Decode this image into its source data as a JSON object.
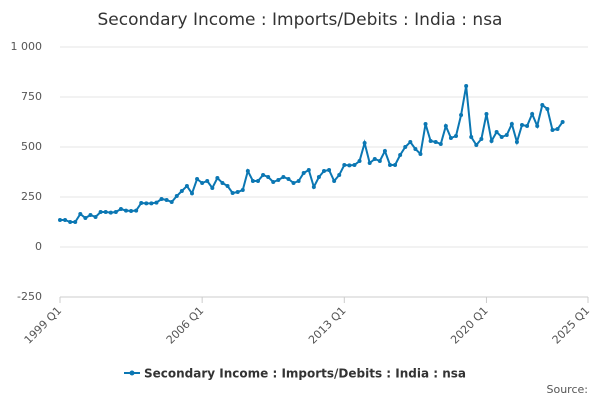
{
  "chart_data": {
    "type": "line",
    "title": "Secondary Income : Imports/Debits : India : nsa",
    "source": "Source:",
    "x": [
      1999,
      1999.25,
      1999.5,
      1999.75,
      2000,
      2000.25,
      2000.5,
      2000.75,
      2001,
      2001.25,
      2001.5,
      2001.75,
      2002,
      2002.25,
      2002.5,
      2002.75,
      2003,
      2003.25,
      2003.5,
      2003.75,
      2004,
      2004.25,
      2004.5,
      2004.75,
      2005,
      2005.25,
      2005.5,
      2005.75,
      2006,
      2006.25,
      2006.5,
      2006.75,
      2007,
      2007.25,
      2007.5,
      2007.75,
      2008,
      2008.25,
      2008.5,
      2008.75,
      2009,
      2009.25,
      2009.5,
      2009.75,
      2010,
      2010.25,
      2010.5,
      2010.75,
      2011,
      2011.25,
      2011.5,
      2011.75,
      2012,
      2012.25,
      2012.5,
      2012.75,
      2013,
      2013.25,
      2013.5,
      2013.75,
      2014,
      2014.25,
      2014.5,
      2014.75,
      2015,
      2015.25,
      2015.5,
      2015.75,
      2016,
      2016.25,
      2016.5,
      2016.75,
      2017,
      2017.25,
      2017.5,
      2017.75,
      2018,
      2018.25,
      2018.5,
      2018.75,
      2019,
      2019.25,
      2019.5,
      2019.75,
      2020,
      2020.25,
      2020.5,
      2020.75,
      2021,
      2021.25,
      2021.5,
      2021.75,
      2022,
      2022.25,
      2022.5,
      2022.75,
      2023,
      2023.25,
      2023.5,
      2023.75
    ],
    "series": [
      {
        "name": "Secondary Income : Imports/Debits : India : nsa",
        "color": "#0b77b3",
        "values": [
          135,
          135,
          125,
          125,
          165,
          145,
          160,
          150,
          175,
          175,
          172,
          175,
          190,
          182,
          180,
          182,
          220,
          218,
          218,
          222,
          240,
          235,
          225,
          255,
          280,
          305,
          268,
          340,
          320,
          330,
          295,
          345,
          320,
          305,
          270,
          275,
          285,
          380,
          330,
          330,
          360,
          350,
          325,
          335,
          350,
          340,
          320,
          330,
          370,
          385,
          300,
          350,
          380,
          385,
          330,
          360,
          410,
          408,
          410,
          430,
          520,
          420,
          440,
          430,
          480,
          410,
          410,
          460,
          500,
          525,
          490,
          465,
          615,
          530,
          525,
          515,
          605,
          545,
          555,
          660,
          805,
          550,
          510,
          540,
          665,
          530,
          575,
          550,
          560,
          615,
          525,
          610,
          605,
          665,
          605,
          710,
          690,
          585,
          590,
          625
        ]
      }
    ],
    "xlim": [
      1999,
      2025
    ],
    "xticks": [
      {
        "value": 1999,
        "label": "1999 Q1"
      },
      {
        "value": 2006,
        "label": "2006 Q1"
      },
      {
        "value": 2013,
        "label": "2013 Q1"
      },
      {
        "value": 2020,
        "label": "2020 Q1"
      },
      {
        "value": 2025,
        "label": "2025 Q1"
      }
    ],
    "ylim": [
      -250,
      1000
    ],
    "yticks": [
      -250,
      0,
      250,
      500,
      750,
      {
        "value": 1000,
        "label": "1 000"
      }
    ],
    "grid": true
  }
}
